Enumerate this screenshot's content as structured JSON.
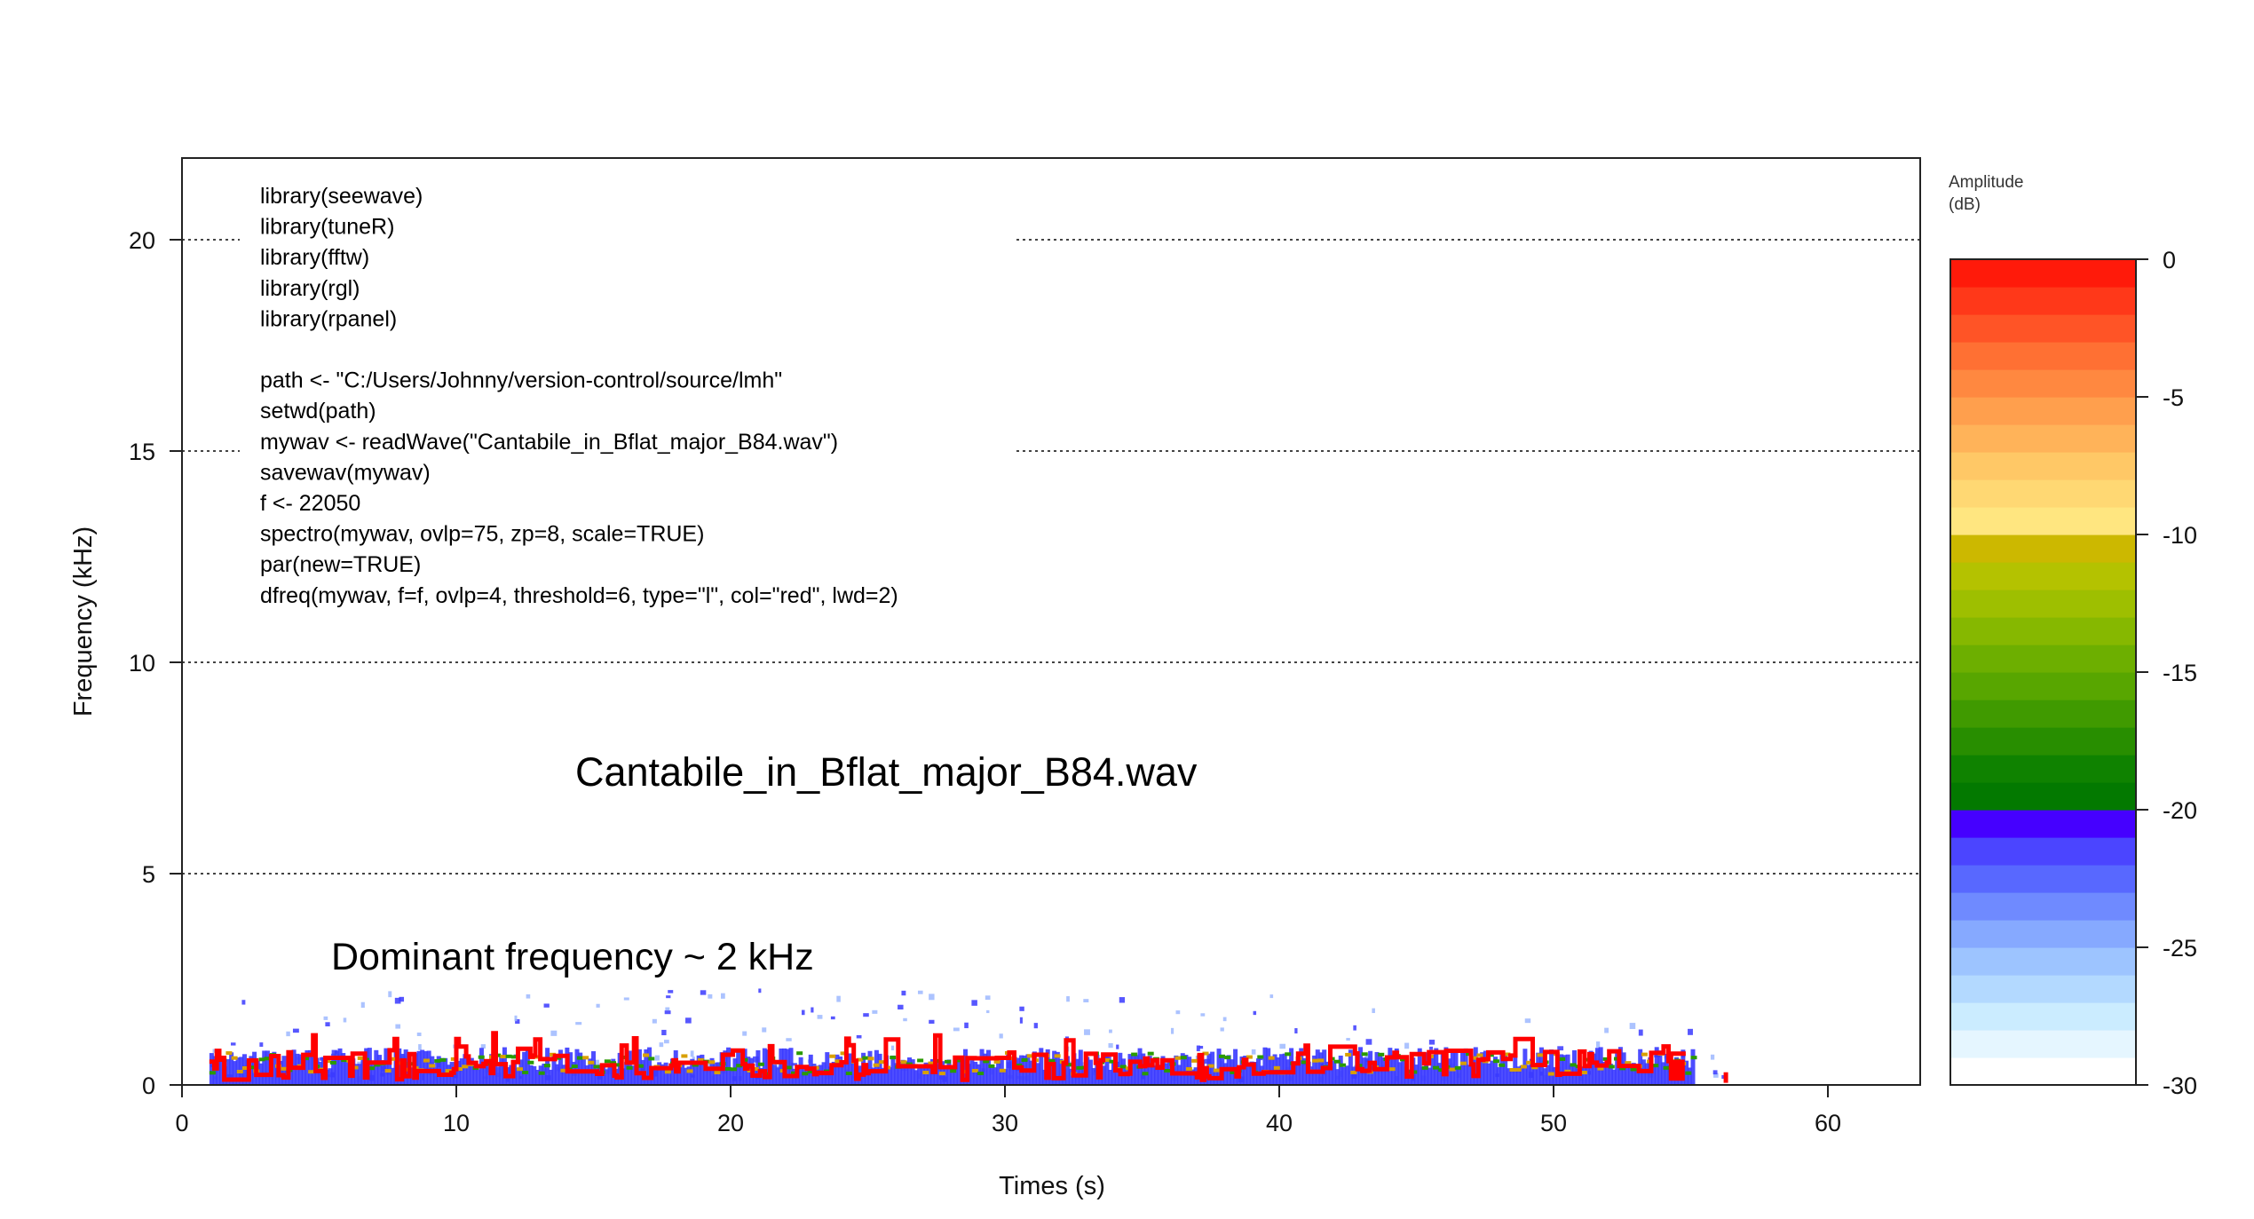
{
  "chart_data": {
    "type": "spectrogram",
    "xlabel": "Times (s)",
    "ylabel": "Frequency (kHz)",
    "xlim": [
      0,
      63.5
    ],
    "ylim": [
      0,
      20.9
    ],
    "x_ticks": [
      0,
      10,
      20,
      30,
      40,
      50,
      60
    ],
    "y_ticks": [
      0,
      5,
      10,
      15,
      20
    ],
    "gridlines": "horizontal dotted at 5, 10, 15, 20 kHz",
    "signal_x_range": [
      1,
      56.3
    ],
    "signal_band_khz": [
      0,
      1.5
    ],
    "colorbar": {
      "title": "Amplitude\n(dB)",
      "title_line1": "Amplitude",
      "title_line2": "(dB)",
      "range": [
        -30,
        0
      ],
      "ticks": [
        0,
        -5,
        -10,
        -15,
        -20,
        -25,
        -30
      ],
      "colors": [
        "#ffffff",
        "#e5f6ff",
        "#cbecff",
        "#b3d9ff",
        "#9dc4ff",
        "#86a9ff",
        "#6f8aff",
        "#5868ff",
        "#4b45ff",
        "#4500ff",
        "#037900",
        "#0f8200",
        "#288e00",
        "#409a00",
        "#58a600",
        "#6daf00",
        "#86b800",
        "#9ebf00",
        "#b4c200",
        "#ccb800",
        "#ffe680",
        "#ffd873",
        "#ffc866",
        "#ffb359",
        "#ff9f4d",
        "#ff8840",
        "#ff7033",
        "#ff5426",
        "#ff3819",
        "#ff1a0a"
      ]
    },
    "annotations": {
      "code": [
        "library(seewave)",
        "library(tuneR)",
        "library(fftw)",
        "library(rgl)",
        "library(rpanel)",
        "",
        "path <- \"C:/Users/Johnny/version-control/source/lmh\"",
        "setwd(path)",
        "mywav <- readWave(\"Cantabile_in_Bflat_major_B84.wav\")",
        "savewav(mywav)",
        "f <- 22050",
        "spectro(mywav, ovlp=75, zp=8, scale=TRUE)",
        "par(new=TRUE)",
        "dfreq(mywav, f=f, ovlp=4, threshold=6, type=\"l\", col=\"red\", lwd=2)"
      ],
      "file_label": "Cantabile_in_Bflat_major_B84.wav",
      "dominant_label": "Dominant frequency ~ 2 kHz"
    },
    "series_colors": {
      "dominant_frequency_line": "#ff0000",
      "spectrogram_low": "#3a3aff",
      "spectrogram_mid": "#2a9a00"
    }
  }
}
